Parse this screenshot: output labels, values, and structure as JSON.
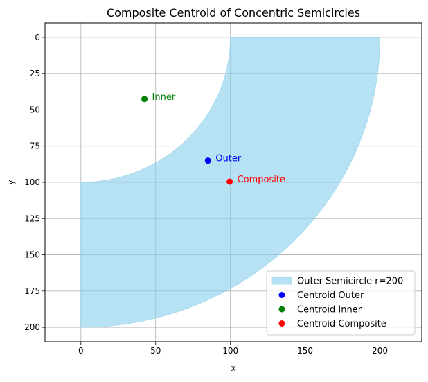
{
  "chart_data": {
    "type": "area",
    "title": "Composite Centroid of Concentric Semicircles",
    "xlabel": "x",
    "ylabel": "y",
    "xlim": [
      -24,
      228
    ],
    "ylim": [
      210,
      -10
    ],
    "y_inverted": true,
    "grid": true,
    "x_ticks": [
      0,
      50,
      100,
      150,
      200
    ],
    "y_ticks": [
      0,
      25,
      50,
      75,
      100,
      125,
      150,
      175,
      200
    ],
    "region": {
      "name": "Outer Semicircle r=200",
      "color": "#87CEEB",
      "outer_arc": {
        "center": [
          200,
          200
        ],
        "radius": 200,
        "from": [
          0,
          200
        ],
        "to": [
          200,
          0
        ]
      },
      "inner_arc": {
        "center": [
          200,
          200
        ],
        "radius": 100,
        "from": [
          100,
          0
        ],
        "to": [
          0,
          100
        ]
      },
      "bounds": [
        [
          0,
          100
        ],
        [
          0,
          200
        ],
        [
          200,
          0
        ],
        [
          100,
          0
        ]
      ]
    },
    "points": [
      {
        "name": "Centroid Outer",
        "label": "Outer",
        "x": 85,
        "y": 85,
        "color": "#0000ff"
      },
      {
        "name": "Centroid Inner",
        "label": "Inner",
        "x": 42.5,
        "y": 42.5,
        "color": "#008000"
      },
      {
        "name": "Centroid Composite",
        "label": "Composite",
        "x": 99.5,
        "y": 99.5,
        "color": "#ff0000"
      }
    ],
    "legend": {
      "placement": "lower-right",
      "entries": [
        {
          "label": "Outer Semicircle r=200",
          "kind": "patch",
          "color": "#87CEEB"
        },
        {
          "label": "Centroid Outer",
          "kind": "marker",
          "color": "#0000ff"
        },
        {
          "label": "Centroid Inner",
          "kind": "marker",
          "color": "#008000"
        },
        {
          "label": "Centroid Composite",
          "kind": "marker",
          "color": "#ff0000"
        }
      ]
    }
  }
}
